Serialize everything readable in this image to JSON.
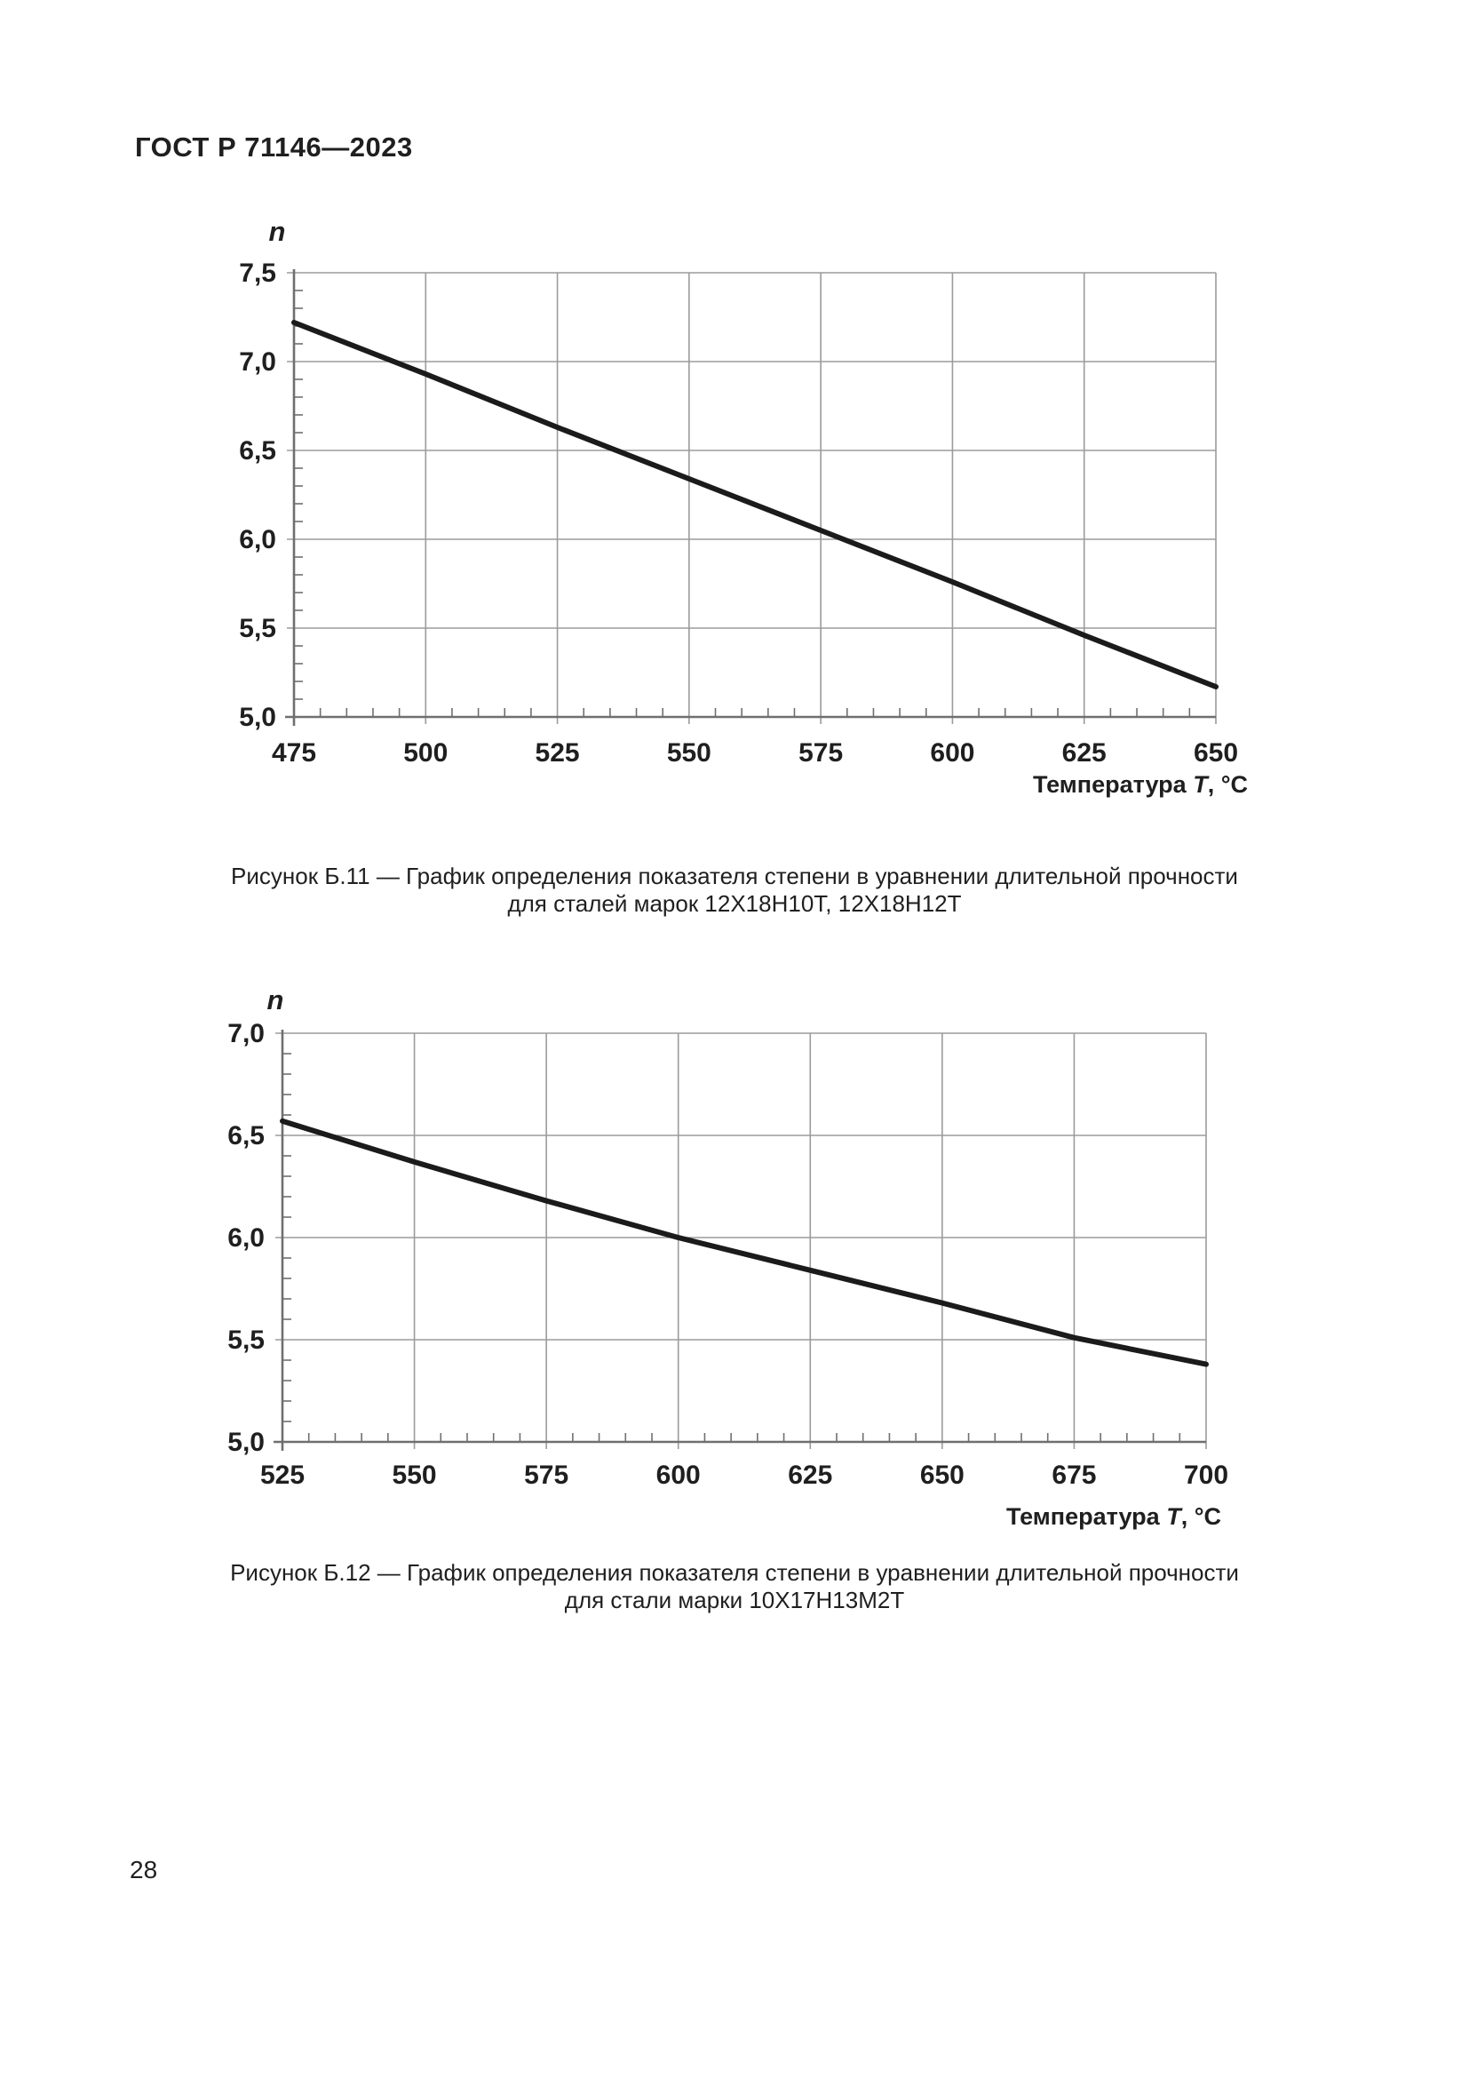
{
  "header": {
    "title": "ГОСТ Р 71146—2023"
  },
  "footer": {
    "page_number": "28"
  },
  "colors": {
    "grid": "#9b9b9b",
    "axis": "#6f6f6f",
    "line": "#1b1b1b",
    "text": "#1f1f1f"
  },
  "figures": [
    {
      "ylabel": "n",
      "xlabel_prefix": "Температура ",
      "xlabel_var": "T",
      "xlabel_suffix": ", °C",
      "caption_line1": "Рисунок Б.11 — График определения показателя степени в уравнении длительной прочности",
      "caption_line2": "для сталей марок 12Х18Н10Т, 12Х18Н12Т"
    },
    {
      "ylabel": "n",
      "xlabel_prefix": "Температура ",
      "xlabel_var": "T",
      "xlabel_suffix": ", °C",
      "caption_line1": "Рисунок Б.12 — График определения показателя степени в уравнении длительной прочности",
      "caption_line2": "для стали марки 10Х17Н13М2Т"
    }
  ],
  "chart_data": [
    {
      "type": "line",
      "title": "Рисунок Б.11 — График определения показателя степени в уравнении длительной прочности для сталей марок 12Х18Н10Т, 12Х18Н12Т",
      "xlabel": "Температура T, °C",
      "ylabel": "n",
      "x": [
        475,
        500,
        525,
        550,
        575,
        600,
        625,
        650
      ],
      "y": [
        7.22,
        6.93,
        6.63,
        6.34,
        6.05,
        5.76,
        5.46,
        5.17
      ],
      "xlim": [
        475,
        650
      ],
      "ylim": [
        5.0,
        7.5
      ],
      "x_ticks": [
        {
          "v": 475,
          "label": "475"
        },
        {
          "v": 500,
          "label": "500"
        },
        {
          "v": 525,
          "label": "525"
        },
        {
          "v": 550,
          "label": "550"
        },
        {
          "v": 575,
          "label": "575"
        },
        {
          "v": 600,
          "label": "600"
        },
        {
          "v": 625,
          "label": "625"
        },
        {
          "v": 650,
          "label": "650"
        }
      ],
      "y_ticks": [
        {
          "v": 5.0,
          "label": "5,0"
        },
        {
          "v": 5.5,
          "label": "5,5"
        },
        {
          "v": 6.0,
          "label": "6,0"
        },
        {
          "v": 6.5,
          "label": "6,5"
        },
        {
          "v": 7.0,
          "label": "7,0"
        },
        {
          "v": 7.5,
          "label": "7,5"
        }
      ],
      "x_minor_step": 5,
      "y_minor_step": 0.1,
      "grid": true,
      "legend": "none"
    },
    {
      "type": "line",
      "title": "Рисунок Б.12 — График определения показателя степени в уравнении длительной прочности для стали марки 10Х17Н13М2Т",
      "xlabel": "Температура T, °C",
      "ylabel": "n",
      "x": [
        525,
        550,
        575,
        600,
        625,
        650,
        675,
        700
      ],
      "y": [
        6.57,
        6.37,
        6.18,
        6.0,
        5.84,
        5.68,
        5.51,
        5.38
      ],
      "xlim": [
        525,
        700
      ],
      "ylim": [
        5.0,
        7.0
      ],
      "x_ticks": [
        {
          "v": 525,
          "label": "525"
        },
        {
          "v": 550,
          "label": "550"
        },
        {
          "v": 575,
          "label": "575"
        },
        {
          "v": 600,
          "label": "600"
        },
        {
          "v": 625,
          "label": "625"
        },
        {
          "v": 650,
          "label": "650"
        },
        {
          "v": 675,
          "label": "675"
        },
        {
          "v": 700,
          "label": "700"
        }
      ],
      "y_ticks": [
        {
          "v": 5.0,
          "label": "5,0"
        },
        {
          "v": 5.5,
          "label": "5,5"
        },
        {
          "v": 6.0,
          "label": "6,0"
        },
        {
          "v": 6.5,
          "label": "6,5"
        },
        {
          "v": 7.0,
          "label": "7,0"
        }
      ],
      "x_minor_step": 5,
      "y_minor_step": 0.1,
      "grid": true,
      "legend": "none"
    }
  ]
}
